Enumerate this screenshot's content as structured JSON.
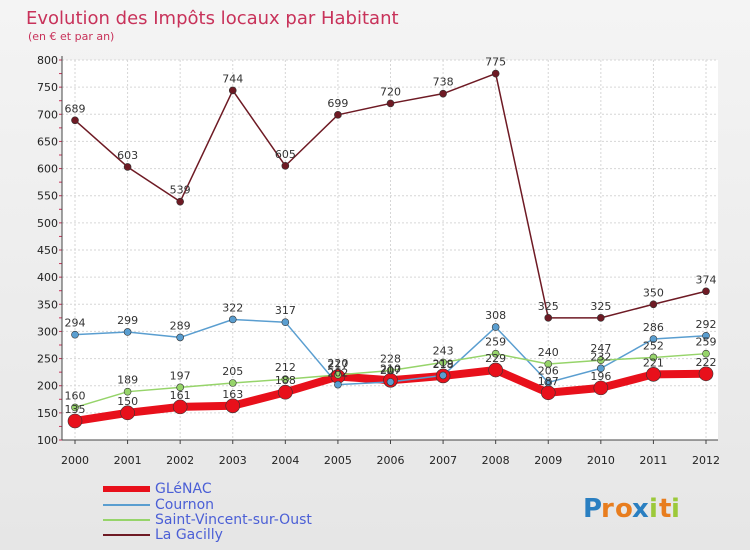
{
  "chart_data": {
    "type": "line",
    "title": "Evolution des Impôts locaux par Habitant",
    "subtitle": "(en € et par an)",
    "categories": [
      "2000",
      "2001",
      "2002",
      "2003",
      "2004",
      "2005",
      "2006",
      "2007",
      "2008",
      "2009",
      "2010",
      "2011",
      "2012"
    ],
    "ylim": [
      100,
      800
    ],
    "yticks": [
      100,
      150,
      200,
      250,
      300,
      350,
      400,
      450,
      500,
      550,
      600,
      650,
      700,
      750,
      800
    ],
    "grid": true,
    "legend_position": "bottom-left",
    "series": [
      {
        "name": "GLéNAC",
        "color": "#e8101b",
        "values": [
          135,
          150,
          161,
          163,
          188,
          217,
          210,
          218,
          229,
          187,
          196,
          221,
          222
        ],
        "labels": [
          "135",
          "150",
          "161",
          "163",
          "188",
          "217",
          "210",
          "218",
          "229",
          "187",
          "196",
          "221",
          "222"
        ]
      },
      {
        "name": "Cournon",
        "color": "#5a9ed0",
        "values": [
          294,
          299,
          289,
          322,
          317,
          202,
          207,
          219,
          308,
          206,
          232,
          286,
          292
        ],
        "labels": [
          "294",
          "299",
          "289",
          "322",
          "317",
          "202",
          "207",
          "219",
          "308",
          "206",
          "232",
          "286",
          "292"
        ]
      },
      {
        "name": "Saint-Vincent-sur-Oust",
        "color": "#96d46a",
        "values": [
          160,
          189,
          197,
          205,
          212,
          220,
          228,
          243,
          259,
          240,
          247,
          252,
          259
        ],
        "labels": [
          "160",
          "189",
          "197",
          "205",
          "212",
          "220",
          "228",
          "243",
          "259",
          "240",
          "247",
          "252",
          "259"
        ]
      },
      {
        "name": "La Gacilly",
        "color": "#6e1a24",
        "values": [
          689,
          603,
          539,
          744,
          605,
          699,
          720,
          738,
          775,
          325,
          325,
          350,
          374
        ],
        "labels": [
          "689",
          "603",
          "539",
          "744",
          "605",
          "699",
          "720",
          "738",
          "775",
          "325",
          "325",
          "350",
          "374"
        ]
      }
    ]
  },
  "logo": {
    "text": "Proxiti",
    "letters": [
      "P",
      "r",
      "o",
      "x",
      "i",
      "t",
      "i"
    ],
    "colors": [
      "#2a7fc1",
      "#e87d1e",
      "#e87d1e",
      "#2a7fc1",
      "#9cc93a",
      "#e87d1e",
      "#9cc93a"
    ]
  }
}
